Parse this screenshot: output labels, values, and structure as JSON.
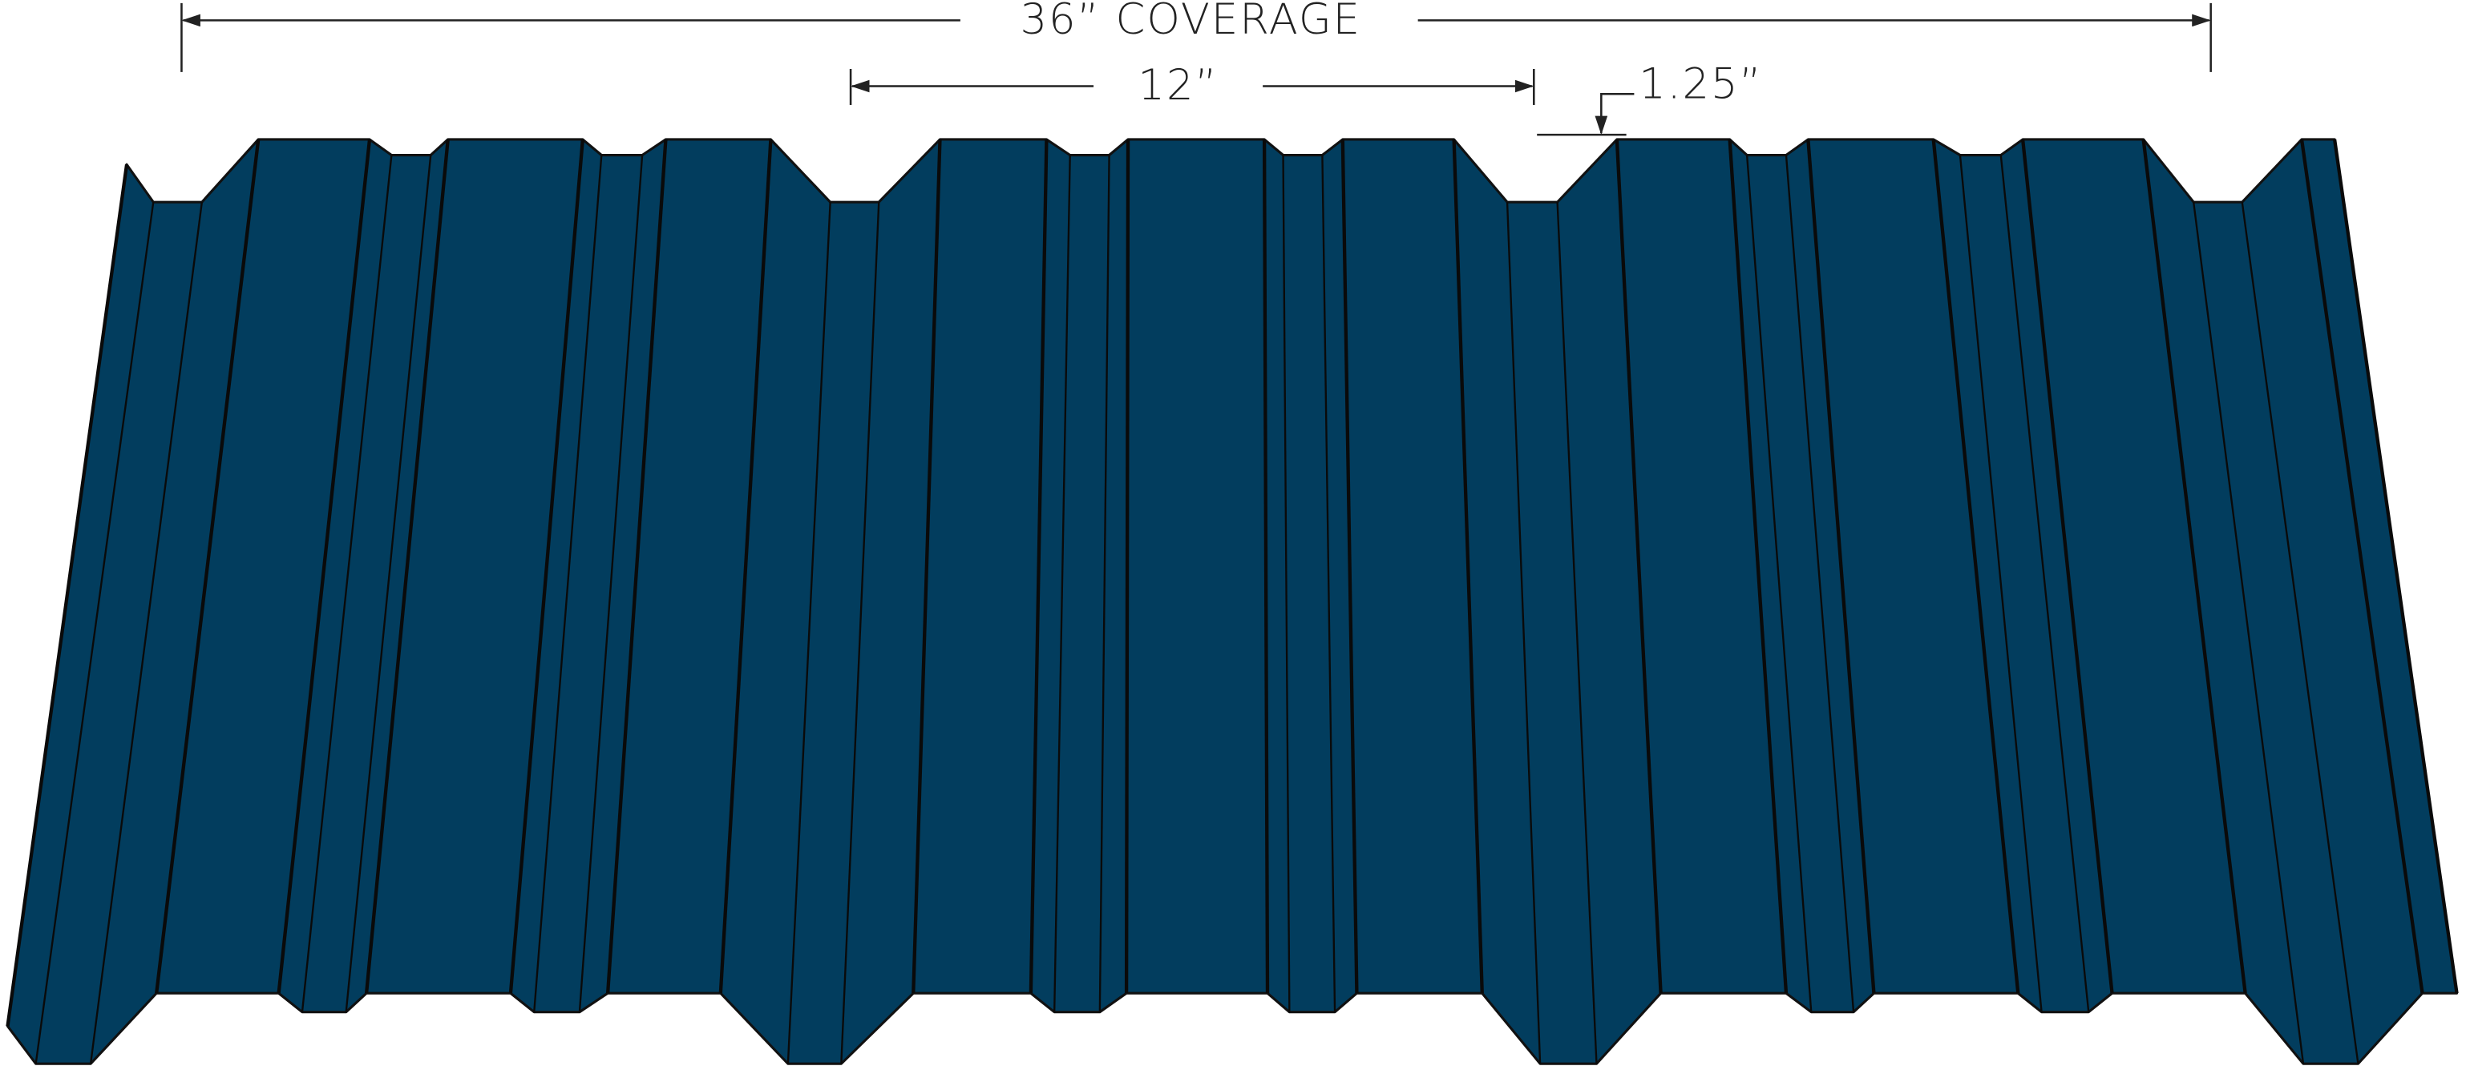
{
  "dimensions": {
    "coverage": "36” COVERAGE",
    "rib_spacing": "12”",
    "rib_height": "1.25”"
  }
}
